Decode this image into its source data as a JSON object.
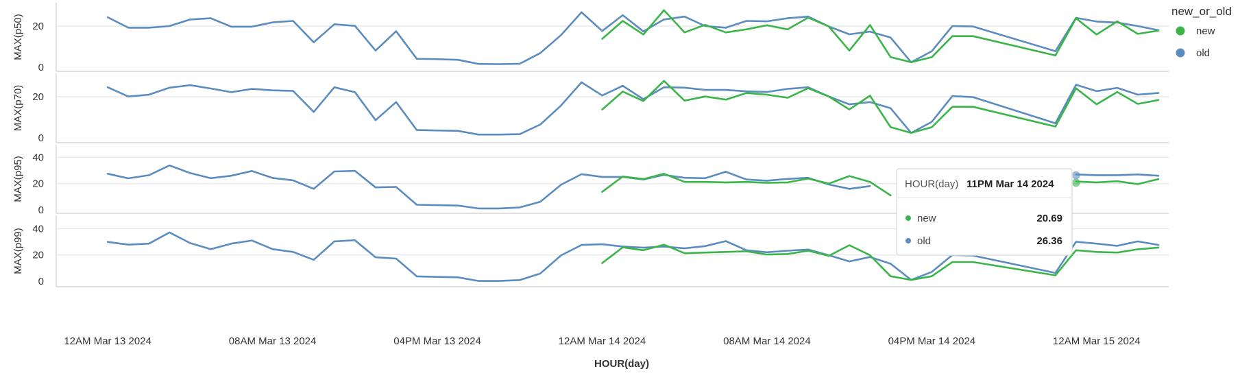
{
  "legend": {
    "title": "new_or_old",
    "items": [
      {
        "label": "new",
        "color": "#3bb54a"
      },
      {
        "label": "old",
        "color": "#5b8cbf"
      }
    ]
  },
  "tooltip": {
    "header_label": "HOUR(day)",
    "header_value": "11PM Mar 14 2024",
    "rows": [
      {
        "label": "new",
        "value": "20.69",
        "color": "#3bb54a"
      },
      {
        "label": "old",
        "value": "26.36",
        "color": "#5b8cbf"
      }
    ]
  },
  "chart_data": {
    "type": "line",
    "xlabel": "HOUR(day)",
    "x_ticks": [
      "12AM Mar 13 2024",
      "08AM Mar 13 2024",
      "04PM Mar 13 2024",
      "12AM Mar 14 2024",
      "08AM Mar 14 2024",
      "04PM Mar 14 2024",
      "12AM Mar 15 2024"
    ],
    "x_hours": [
      0,
      1,
      2,
      3,
      4,
      5,
      6,
      7,
      8,
      9,
      10,
      11,
      12,
      13,
      14,
      15,
      16,
      17,
      18,
      19,
      20,
      21,
      22,
      23,
      24,
      25,
      26,
      27,
      28,
      29,
      30,
      31,
      32,
      33,
      34,
      35,
      36,
      37,
      38,
      39,
      40,
      41,
      42,
      46,
      47,
      48,
      49,
      50,
      51
    ],
    "x_range_hours": [
      -2.5,
      51.5
    ],
    "x_tick_hours": [
      0,
      8,
      16,
      24,
      32,
      40,
      48
    ],
    "panels": [
      {
        "ylabel": "MAX(p50)",
        "yticks": [
          0,
          20
        ],
        "ylim": [
          0,
          30
        ],
        "series": [
          {
            "name": "old",
            "values": [
              24.3,
              19.2,
              19.2,
              20.0,
              23.2,
              23.8,
              19.7,
              19.7,
              21.8,
              22.5,
              12.1,
              20.9,
              20.1,
              8.1,
              17.5,
              4.1,
              3.9,
              3.6,
              1.6,
              1.5,
              1.7,
              6.9,
              15.6,
              26.7,
              17.6,
              25.3,
              17.4,
              23.2,
              24.6,
              20.0,
              19.2,
              22.5,
              22.3,
              23.8,
              24.6,
              19.8,
              16.0,
              17.3,
              14.4,
              2.4,
              7.8,
              20.0,
              19.8,
              7.8,
              24.0,
              22.2,
              21.7,
              20.0,
              18.0
            ]
          },
          {
            "name": "new",
            "values": [
              null,
              null,
              null,
              null,
              null,
              null,
              null,
              null,
              null,
              null,
              null,
              null,
              null,
              null,
              null,
              null,
              null,
              null,
              null,
              null,
              null,
              null,
              null,
              null,
              13.8,
              22.5,
              15.9,
              27.7,
              16.9,
              20.6,
              16.9,
              18.4,
              20.4,
              18.4,
              24.1,
              19.8,
              8.1,
              20.5,
              4.9,
              2.4,
              4.9,
              15.1,
              15.1,
              5.7,
              23.8,
              15.9,
              22.3,
              16.2,
              17.8
            ]
          }
        ]
      },
      {
        "ylabel": "MAX(p70)",
        "yticks": [
          0,
          20
        ],
        "ylim": [
          0,
          30
        ],
        "series": [
          {
            "name": "old",
            "values": [
              24.6,
              20.1,
              21.0,
              24.4,
              25.6,
              24.0,
              22.2,
              23.8,
              23.1,
              22.8,
              12.6,
              24.6,
              22.2,
              8.6,
              17.4,
              3.8,
              3.6,
              3.4,
              1.6,
              1.6,
              1.8,
              6.5,
              15.7,
              27.0,
              20.6,
              25.3,
              18.8,
              24.6,
              24.4,
              23.3,
              23.3,
              22.6,
              22.3,
              23.8,
              24.6,
              20.1,
              16.3,
              17.4,
              14.4,
              2.4,
              7.8,
              20.3,
              19.8,
              7.1,
              25.8,
              22.7,
              24.3,
              21.0,
              21.8
            ]
          },
          {
            "name": "new",
            "values": [
              null,
              null,
              null,
              null,
              null,
              null,
              null,
              null,
              null,
              null,
              null,
              null,
              null,
              null,
              null,
              null,
              null,
              null,
              null,
              null,
              null,
              null,
              null,
              null,
              13.8,
              22.5,
              17.9,
              27.7,
              18.1,
              20.1,
              18.6,
              21.8,
              21.0,
              19.5,
              24.1,
              20.1,
              13.8,
              20.5,
              5.2,
              2.4,
              5.2,
              15.1,
              15.1,
              5.5,
              24.1,
              16.3,
              22.3,
              16.5,
              18.4
            ]
          }
        ]
      },
      {
        "ylabel": "MAX(p95)",
        "yticks": [
          0,
          20,
          40
        ],
        "ylim": [
          0,
          48
        ],
        "series": [
          {
            "name": "old",
            "values": [
              27.5,
              24.0,
              26.4,
              33.8,
              28.0,
              24.1,
              26.0,
              29.6,
              24.3,
              22.5,
              16.0,
              29.2,
              29.7,
              17.1,
              17.5,
              3.9,
              3.6,
              3.3,
              1.1,
              1.1,
              1.9,
              6.2,
              19.1,
              27.2,
              25.1,
              25.1,
              23.1,
              26.6,
              24.4,
              24.1,
              29.0,
              23.1,
              22.2,
              23.6,
              24.4,
              19.3,
              16.0,
              18.1,
              null,
              null,
              null,
              null,
              null,
              null,
              27.0,
              26.4,
              26.4,
              27.0,
              26.0
            ]
          },
          {
            "name": "new",
            "values": [
              null,
              null,
              null,
              null,
              null,
              null,
              null,
              null,
              null,
              null,
              null,
              null,
              null,
              null,
              null,
              null,
              null,
              null,
              null,
              null,
              null,
              null,
              null,
              null,
              13.7,
              25.4,
              23.4,
              27.5,
              21.3,
              21.3,
              20.9,
              21.3,
              20.6,
              20.9,
              23.8,
              20.0,
              25.8,
              21.3,
              11.0,
              null,
              null,
              null,
              null,
              null,
              21.6,
              20.9,
              21.8,
              19.6,
              23.4
            ]
          }
        ]
      },
      {
        "ylabel": "MAX(p99)",
        "yticks": [
          0,
          20,
          40
        ],
        "ylim": [
          0,
          48
        ],
        "series": [
          {
            "name": "old",
            "values": [
              29.9,
              27.8,
              28.6,
              37.1,
              29.0,
              24.4,
              28.6,
              31.0,
              24.4,
              22.3,
              16.3,
              30.3,
              31.2,
              18.2,
              17.2,
              3.7,
              3.3,
              3.0,
              0.2,
              0.2,
              0.9,
              5.9,
              19.6,
              27.6,
              28.1,
              26.4,
              25.5,
              26.4,
              25.0,
              26.7,
              30.5,
              23.6,
              22.0,
              23.2,
              24.1,
              19.8,
              15.1,
              18.4,
              13.3,
              1.0,
              7.1,
              20.0,
              19.5,
              6.3,
              30.0,
              28.6,
              26.9,
              30.3,
              27.6
            ]
          },
          {
            "name": "new",
            "values": [
              null,
              null,
              null,
              null,
              null,
              null,
              null,
              null,
              null,
              null,
              null,
              null,
              null,
              null,
              null,
              null,
              null,
              null,
              null,
              null,
              null,
              null,
              null,
              null,
              13.8,
              25.8,
              23.6,
              27.8,
              21.3,
              21.8,
              22.3,
              22.8,
              20.3,
              20.7,
              23.2,
              19.3,
              27.4,
              19.8,
              3.8,
              1.0,
              3.8,
              14.6,
              14.6,
              4.5,
              23.6,
              22.3,
              21.8,
              24.3,
              25.6
            ]
          }
        ]
      }
    ]
  }
}
